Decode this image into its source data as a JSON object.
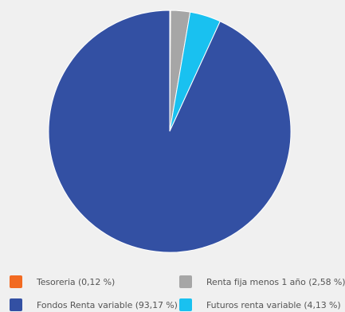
{
  "chart_data": {
    "type": "pie",
    "title": "",
    "slices": [
      {
        "label": "Tesoreria (0,12 %)",
        "value": 0.12,
        "color": "#f26a21"
      },
      {
        "label": "Renta fija menos 1 año (2,58 %)",
        "value": 2.58,
        "color": "#a6a6a6"
      },
      {
        "label": "Futuros renta variable (4,13 %)",
        "value": 4.13,
        "color": "#19c1f0"
      },
      {
        "label": "Fondos Renta variable (93,17 %)",
        "value": 93.17,
        "color": "#3350a3"
      }
    ],
    "legend_position": "bottom"
  },
  "legend": [
    {
      "label": "Tesoreria (0,12 %)",
      "color": "#f26a21"
    },
    {
      "label": "Renta fija menos 1 año (2,58 %)",
      "color": "#a6a6a6"
    },
    {
      "label": "Fondos Renta variable (93,17 %)",
      "color": "#3350a3"
    },
    {
      "label": "Futuros renta variable (4,13 %)",
      "color": "#19c1f0"
    }
  ]
}
